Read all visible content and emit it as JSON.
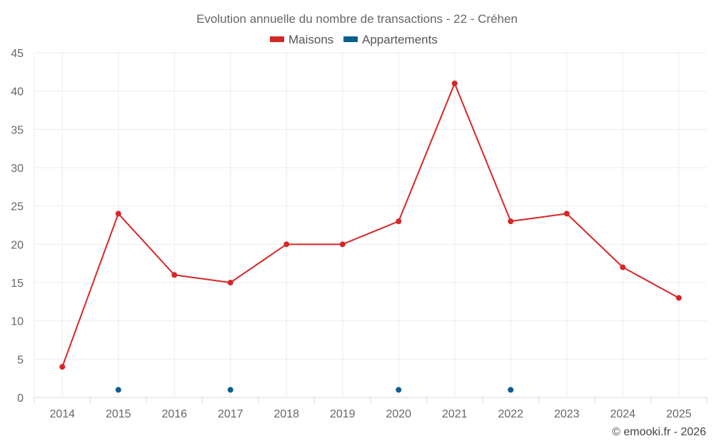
{
  "chart_data": {
    "type": "line",
    "title": "Evolution annuelle du nombre de transactions - 22 - Créhen",
    "categories": [
      "2014",
      "2015",
      "2016",
      "2017",
      "2018",
      "2019",
      "2020",
      "2021",
      "2022",
      "2023",
      "2024",
      "2025"
    ],
    "series": [
      {
        "name": "Maisons",
        "color": "#d62728",
        "values": [
          4,
          24,
          16,
          15,
          20,
          20,
          23,
          41,
          23,
          24,
          17,
          13
        ],
        "style": "line"
      },
      {
        "name": "Appartements",
        "color": "#0b5f8f",
        "values": [
          null,
          1,
          null,
          1,
          null,
          null,
          1,
          null,
          1,
          null,
          null,
          null
        ],
        "style": "points"
      }
    ],
    "ylim": [
      0,
      45
    ],
    "yticks": [
      0,
      5,
      10,
      15,
      20,
      25,
      30,
      35,
      40,
      45
    ],
    "grid": true,
    "legend": "top-center",
    "xlabel": "",
    "ylabel": ""
  },
  "credit": "© emooki.fr - 2026"
}
